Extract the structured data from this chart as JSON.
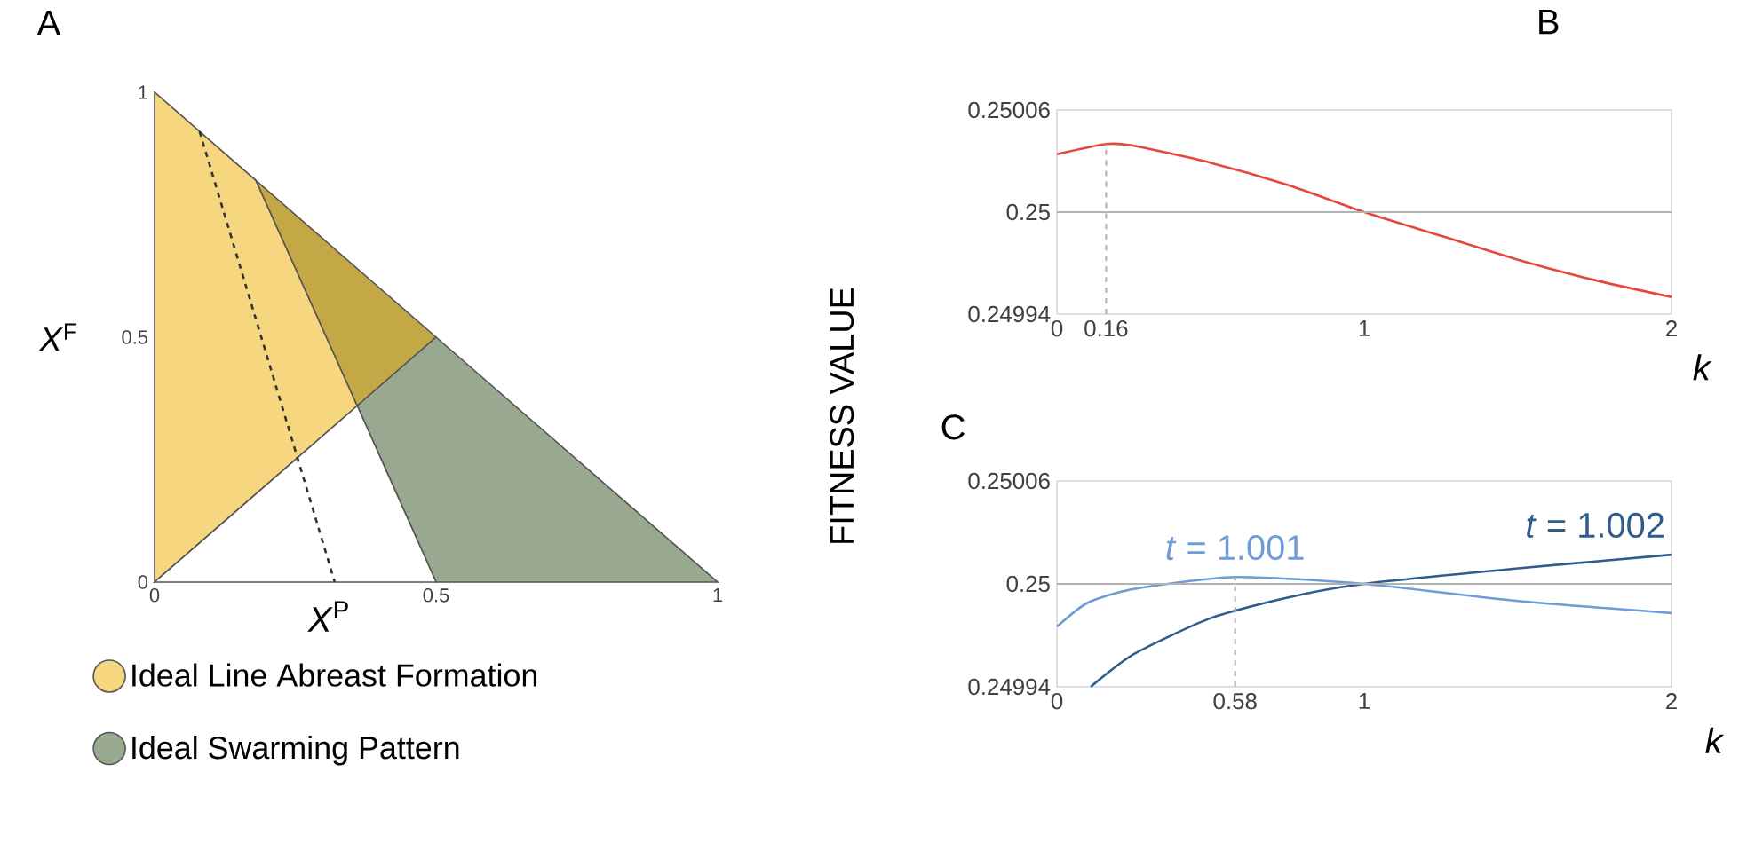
{
  "chart_data": [
    {
      "type": "area",
      "title": "A",
      "xlabel": "*X*$^{P}$",
      "ylabel": "*X*$^{F}$",
      "xlim": [
        0,
        1
      ],
      "ylim": [
        0,
        1
      ],
      "xticks": [
        0,
        0.5,
        1
      ],
      "yticks": [
        0,
        0.5,
        1
      ],
      "legend": "bottom",
      "series": [
        {
          "name": "Ideal Line Abreast Formation",
          "color": "#f6d67e",
          "x": [
            0,
            0.18,
            0.36,
            0
          ],
          "values": [
            1,
            0.82,
            0.36,
            0
          ]
        },
        {
          "color": "#c4a846",
          "x": [
            0.18,
            0.5,
            0.36
          ],
          "values": [
            0.82,
            0.5,
            0.36
          ]
        },
        {
          "name": "Ideal Swarming Pattern",
          "color": "#99a98f",
          "x": [
            0.36,
            0.5,
            1,
            0.5
          ],
          "values": [
            0.36,
            0.5,
            0,
            0
          ]
        },
        {
          "color": "#ffffff",
          "x": [
            0,
            0.36,
            0.5
          ],
          "values": [
            0,
            0.36,
            0
          ]
        },
        {
          "type": "line",
          "color": "#333333",
          "line_style": "dashed",
          "x": [
            0.08,
            0.32
          ],
          "values": [
            0.92,
            0
          ]
        }
      ]
    },
    {
      "type": "line",
      "title": "B",
      "xlabel": "*k*",
      "ylabel": "FITNESS VALUE",
      "xlim": [
        0,
        2
      ],
      "ylim": [
        0.24994,
        0.25006
      ],
      "xticks": [
        0,
        0.16,
        1,
        2
      ],
      "yticks": [
        0.24994,
        0.25,
        0.25006
      ],
      "series": [
        {
          "color": "#e8453c",
          "x": [
            0,
            0.16,
            0.25,
            0.5,
            0.75,
            1,
            1.25,
            1.5,
            1.75,
            2
          ],
          "values": [
            0.250034,
            0.25004,
            0.250039,
            0.250029,
            0.250016,
            0.25,
            0.249986,
            0.249972,
            0.24996,
            0.24995
          ]
        }
      ],
      "ref_lines": [
        {
          "axis": "x",
          "value": 0.16,
          "color": "#b0b0b0",
          "line_style": "dashed"
        },
        {
          "axis": "y",
          "value": 0.25,
          "color": "#b2b2b2"
        }
      ]
    },
    {
      "type": "line",
      "title": "C",
      "xlabel": "*k*",
      "xlim": [
        0,
        2
      ],
      "ylim": [
        0.24994,
        0.25006
      ],
      "xticks": [
        0,
        0.58,
        1,
        2
      ],
      "yticks": [
        0.24994,
        0.25,
        0.25006
      ],
      "series": [
        {
          "name": "*t* = 1.001",
          "color": "#6f9bd6",
          "x": [
            0,
            0.1,
            0.25,
            0.58,
            1,
            1.5,
            2
          ],
          "values": [
            0.249975,
            0.249989,
            0.249997,
            0.250004,
            0.25,
            0.24999,
            0.249983
          ]
        },
        {
          "name": "*t* = 1.002",
          "color": "#2f5b8e",
          "x": [
            0.11,
            0.25,
            0.5,
            0.75,
            1,
            1.5,
            2
          ],
          "values": [
            0.24994,
            0.249959,
            0.24998,
            0.249992,
            0.25,
            0.250009,
            0.250017
          ]
        }
      ],
      "ref_lines": [
        {
          "axis": "x",
          "value": 0.58,
          "color": "#b0b0b0",
          "line_style": "dashed"
        },
        {
          "axis": "y",
          "value": 0.25,
          "color": "#b2b2b2"
        }
      ]
    }
  ]
}
